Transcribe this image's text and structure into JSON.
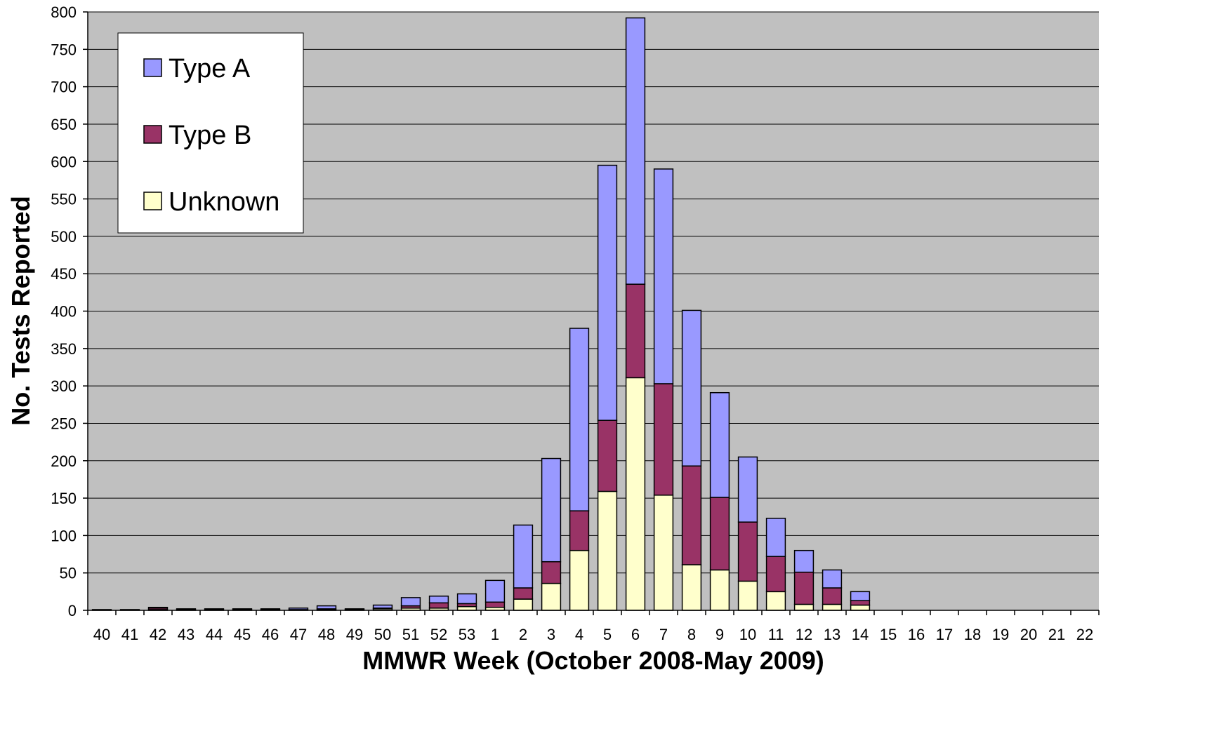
{
  "chart_data": {
    "type": "bar",
    "stacked": true,
    "title": "",
    "xlabel": "MMWR Week (October 2008-May 2009)",
    "ylabel": "No. Tests Reported",
    "ylim": [
      0,
      800
    ],
    "yticks": [
      0,
      50,
      100,
      150,
      200,
      250,
      300,
      350,
      400,
      450,
      500,
      550,
      600,
      650,
      700,
      750,
      800
    ],
    "grid": true,
    "legend_position": "top-left",
    "plot_background": "#C0C0C0",
    "categories": [
      "40",
      "41",
      "42",
      "43",
      "44",
      "45",
      "46",
      "47",
      "48",
      "49",
      "50",
      "51",
      "52",
      "53",
      "1",
      "2",
      "3",
      "4",
      "5",
      "6",
      "7",
      "8",
      "9",
      "10",
      "11",
      "12",
      "13",
      "14",
      "15",
      "16",
      "17",
      "18",
      "19",
      "20",
      "21",
      "22"
    ],
    "series": [
      {
        "name": "Unknown",
        "color": "#FFFFCC",
        "values": [
          0,
          0,
          1,
          0,
          0,
          0,
          0,
          0,
          1,
          0,
          2,
          3,
          3,
          5,
          4,
          15,
          36,
          80,
          159,
          311,
          154,
          61,
          54,
          39,
          25,
          8,
          8,
          7,
          0,
          0,
          0,
          0,
          0,
          0,
          0,
          0
        ]
      },
      {
        "name": "Type B",
        "color": "#993366",
        "values": [
          0,
          0,
          2,
          1,
          1,
          1,
          1,
          1,
          1,
          1,
          1,
          3,
          7,
          4,
          7,
          15,
          29,
          53,
          95,
          125,
          149,
          132,
          97,
          79,
          47,
          43,
          22,
          6,
          0,
          0,
          0,
          0,
          0,
          0,
          0,
          0
        ]
      },
      {
        "name": "Type A",
        "color": "#9999FF",
        "values": [
          1,
          1,
          1,
          1,
          1,
          1,
          1,
          2,
          4,
          1,
          4,
          11,
          9,
          13,
          29,
          84,
          138,
          244,
          341,
          356,
          287,
          208,
          140,
          87,
          51,
          29,
          24,
          12,
          0,
          0,
          0,
          0,
          0,
          0,
          0,
          0
        ]
      }
    ],
    "legend_order": [
      "Type A",
      "Type B",
      "Unknown"
    ]
  }
}
